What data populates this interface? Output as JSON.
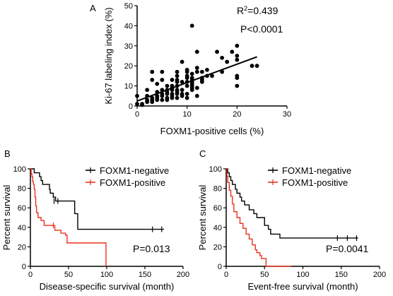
{
  "chart_data": [
    {
      "panel": "A",
      "type": "scatter",
      "xlabel": "FOXM1-positive cells (%)",
      "ylabel": "Ki-67 labeling index (%)",
      "xlim": [
        0,
        30
      ],
      "ylim": [
        0,
        50
      ],
      "xticks": [
        0,
        10,
        20,
        30
      ],
      "yticks": [
        0,
        10,
        20,
        30,
        40,
        50
      ],
      "annotations": [
        {
          "id": "r2",
          "base": "R",
          "sup": "2",
          "rest": "=0.439"
        },
        {
          "id": "p",
          "text": "P<0.0001"
        }
      ],
      "regression": {
        "x": [
          0,
          24
        ],
        "y": [
          2.5,
          24.5
        ]
      },
      "points": [
        [
          0,
          1
        ],
        [
          0,
          5
        ],
        [
          1,
          0.5
        ],
        [
          1,
          1
        ],
        [
          2,
          2
        ],
        [
          2,
          3
        ],
        [
          2,
          5
        ],
        [
          2,
          8
        ],
        [
          3,
          3
        ],
        [
          3,
          2
        ],
        [
          3,
          13
        ],
        [
          3,
          17
        ],
        [
          3,
          4
        ],
        [
          4,
          3
        ],
        [
          4,
          5
        ],
        [
          4,
          7
        ],
        [
          4,
          11
        ],
        [
          4,
          4
        ],
        [
          5,
          3
        ],
        [
          5,
          5
        ],
        [
          5,
          6
        ],
        [
          5,
          8
        ],
        [
          5,
          13
        ],
        [
          5,
          17
        ],
        [
          6,
          4
        ],
        [
          6,
          6
        ],
        [
          6,
          7
        ],
        [
          6,
          8
        ],
        [
          6,
          10
        ],
        [
          6,
          3
        ],
        [
          7,
          4
        ],
        [
          7,
          5
        ],
        [
          7,
          6
        ],
        [
          7,
          8
        ],
        [
          7,
          9
        ],
        [
          7,
          10
        ],
        [
          7,
          13
        ],
        [
          8,
          4
        ],
        [
          8,
          6
        ],
        [
          8,
          7
        ],
        [
          8,
          8
        ],
        [
          8,
          10
        ],
        [
          8,
          12
        ],
        [
          8,
          13
        ],
        [
          8,
          15
        ],
        [
          8,
          17
        ],
        [
          9,
          5
        ],
        [
          9,
          6
        ],
        [
          9,
          8
        ],
        [
          9,
          12
        ],
        [
          9,
          22
        ],
        [
          10,
          4
        ],
        [
          10,
          6
        ],
        [
          10,
          10
        ],
        [
          10,
          12
        ],
        [
          10,
          14
        ],
        [
          10,
          15
        ],
        [
          10,
          17
        ],
        [
          10,
          18
        ],
        [
          11,
          8
        ],
        [
          11,
          9
        ],
        [
          11,
          10
        ],
        [
          11,
          11
        ],
        [
          11,
          12
        ],
        [
          11,
          13
        ],
        [
          11,
          14
        ],
        [
          11,
          16
        ],
        [
          11,
          40
        ],
        [
          12,
          5
        ],
        [
          12,
          9
        ],
        [
          12,
          17
        ],
        [
          12,
          19
        ],
        [
          12,
          27
        ],
        [
          13,
          12
        ],
        [
          13,
          13
        ],
        [
          13,
          14
        ],
        [
          13,
          17
        ],
        [
          14,
          15
        ],
        [
          14,
          18
        ],
        [
          15,
          15
        ],
        [
          16,
          27
        ],
        [
          17,
          17
        ],
        [
          17,
          24
        ],
        [
          18,
          22
        ],
        [
          19,
          27
        ],
        [
          20,
          10
        ],
        [
          20,
          14
        ],
        [
          20,
          15
        ],
        [
          20,
          23
        ],
        [
          20,
          25
        ],
        [
          20,
          30
        ],
        [
          23,
          20
        ],
        [
          24,
          20
        ]
      ]
    },
    {
      "panel": "B",
      "type": "line",
      "xlabel": "Disease-specific survival (month)",
      "ylabel": "Percent survival",
      "xlim": [
        0,
        200
      ],
      "ylim": [
        0,
        100
      ],
      "xticks": [
        0,
        50,
        100,
        150,
        200
      ],
      "yticks": [
        0,
        20,
        40,
        60,
        80,
        100
      ],
      "p_text": "P=0.013",
      "series": [
        {
          "name": "FOXM1-negative",
          "color": "#000000",
          "x": [
            0,
            4,
            5,
            10,
            12,
            14,
            16,
            20,
            25,
            26,
            30,
            33,
            40,
            50,
            58,
            62,
            62,
            175
          ],
          "y": [
            100,
            100,
            96,
            96,
            92,
            88,
            84,
            84,
            79,
            75,
            71,
            67,
            67,
            67,
            54,
            50,
            38,
            38
          ],
          "censored": [
            [
              31,
              67
            ],
            [
              36,
              67
            ],
            [
              160,
              38
            ],
            [
              172,
              38
            ]
          ]
        },
        {
          "name": "FOXM1-positive",
          "color": "#e8321e",
          "x": [
            0,
            1,
            2,
            3,
            4,
            5,
            6,
            7,
            8,
            10,
            14,
            18,
            25,
            32,
            40,
            46,
            48,
            98,
            99
          ],
          "y": [
            100,
            95,
            92,
            87,
            84,
            79,
            71,
            62,
            55,
            50,
            47,
            42,
            42,
            37,
            34,
            32,
            24,
            24,
            0
          ],
          "censored": [
            [
              30,
              42
            ]
          ]
        }
      ]
    },
    {
      "panel": "C",
      "type": "line",
      "xlabel": "Event-free survival (month)",
      "ylabel": "Percent survival",
      "xlim": [
        0,
        200
      ],
      "ylim": [
        0,
        100
      ],
      "xticks": [
        0,
        50,
        100,
        150,
        200
      ],
      "yticks": [
        0,
        20,
        40,
        60,
        80,
        100
      ],
      "p_text": "P=0.0041",
      "series": [
        {
          "name": "FOXM1-negative",
          "color": "#000000",
          "x": [
            0,
            2,
            4,
            6,
            8,
            12,
            14,
            18,
            20,
            24,
            30,
            36,
            40,
            50,
            55,
            58,
            70,
            172
          ],
          "y": [
            100,
            96,
            92,
            88,
            84,
            79,
            75,
            71,
            67,
            63,
            58,
            54,
            50,
            42,
            38,
            33,
            29,
            29
          ],
          "censored": [
            [
              145,
              29
            ],
            [
              158,
              29
            ],
            [
              170,
              29
            ]
          ]
        },
        {
          "name": "FOXM1-positive",
          "color": "#e8321e",
          "x": [
            0,
            1,
            2,
            4,
            6,
            8,
            10,
            14,
            18,
            22,
            26,
            30,
            34,
            38,
            40,
            44,
            46,
            52,
            85
          ],
          "y": [
            100,
            92,
            86,
            78,
            72,
            64,
            56,
            50,
            44,
            39,
            33,
            28,
            22,
            17,
            14,
            11,
            8,
            0,
            0
          ],
          "censored": []
        }
      ]
    }
  ]
}
